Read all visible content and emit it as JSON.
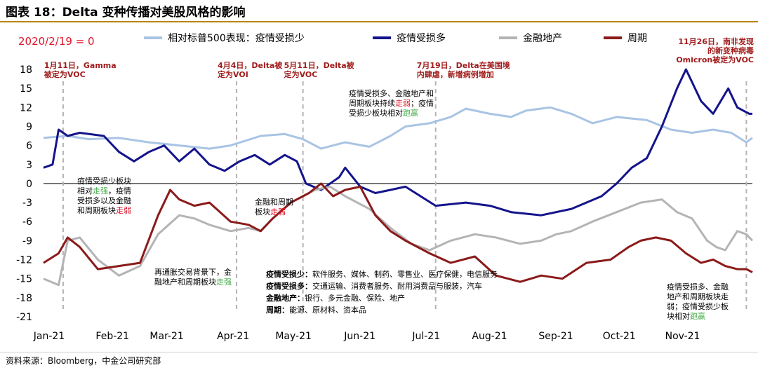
{
  "header": {
    "title": "图表 18：Delta 变种传播对美股风格的影响",
    "base_note": "2020/2/19 = 0",
    "source": "资料来源：Bloomberg，中金公司研究部"
  },
  "colors": {
    "light_blue": "#a9c4e4",
    "dark_blue": "#14148c",
    "gray": "#b4b4b4",
    "dark_red": "#8b1a1a",
    "accent_red": "#e0142a",
    "green": "#4caf50"
  },
  "chart_data": {
    "type": "line",
    "title": "Delta 变种传播对美股风格的影响",
    "xlabel": "",
    "ylabel": "",
    "ylim": [
      -21,
      18
    ],
    "yticks": [
      18,
      15,
      12,
      9,
      6,
      3,
      0,
      -3,
      -6,
      -9,
      -12,
      -15,
      -18,
      -21
    ],
    "xlim": [
      0,
      235
    ],
    "categories": [
      "Jan-21",
      "Feb-21",
      "Mar-21",
      "Apr-21",
      "May-21",
      "Jun-21",
      "Jul-21",
      "Aug-21",
      "Sep-21",
      "Oct-21",
      "Nov-21"
    ],
    "category_x": [
      0,
      21,
      39,
      61,
      81,
      103,
      125,
      146,
      168,
      189,
      210
    ],
    "series": [
      {
        "name": "相对标普500表现：疫情受损少",
        "color": "#a9c4e4",
        "x": [
          0,
          8,
          15,
          25,
          35,
          45,
          55,
          62,
          72,
          80,
          86,
          92,
          100,
          108,
          115,
          120,
          128,
          135,
          140,
          148,
          155,
          160,
          168,
          175,
          182,
          190,
          200,
          208,
          215,
          222,
          228,
          233,
          235
        ],
        "values": [
          7.2,
          7.5,
          7.0,
          7.2,
          6.5,
          6.0,
          5.5,
          6.0,
          7.5,
          7.8,
          7.0,
          5.5,
          6.5,
          5.8,
          7.5,
          9.0,
          9.5,
          10.5,
          11.8,
          11.0,
          10.5,
          11.5,
          12.0,
          11.0,
          9.5,
          10.5,
          10.0,
          8.5,
          8.0,
          8.5,
          8.0,
          6.5,
          7.2
        ]
      },
      {
        "name": "疫情受损多",
        "color": "#14148c",
        "x": [
          0,
          3,
          5,
          8,
          12,
          20,
          25,
          30,
          35,
          40,
          45,
          50,
          55,
          60,
          65,
          70,
          75,
          80,
          84,
          87,
          92,
          98,
          100,
          105,
          110,
          115,
          120,
          125,
          130,
          140,
          148,
          155,
          165,
          175,
          185,
          190,
          195,
          200,
          205,
          210,
          213,
          218,
          222,
          227,
          230,
          234,
          235
        ],
        "values": [
          2.5,
          3.0,
          8.5,
          7.5,
          8.0,
          7.5,
          5.0,
          3.5,
          5.0,
          6.0,
          3.5,
          5.5,
          3.0,
          2.0,
          3.5,
          4.5,
          3.0,
          4.5,
          3.5,
          0.0,
          -1.0,
          1.0,
          2.5,
          -0.5,
          -1.5,
          -1.0,
          -0.5,
          -2.0,
          -3.5,
          -3.0,
          -3.5,
          -4.5,
          -5.0,
          -4.0,
          -2.0,
          0.0,
          2.5,
          4.0,
          9.0,
          15.0,
          18.0,
          13.0,
          11.0,
          15.0,
          12.0,
          11.0,
          11.0
        ]
      },
      {
        "name": "金融地产",
        "color": "#b4b4b4",
        "x": [
          0,
          5,
          8,
          12,
          18,
          25,
          32,
          38,
          45,
          50,
          55,
          62,
          68,
          72,
          76,
          82,
          90,
          95,
          100,
          108,
          115,
          122,
          128,
          135,
          143,
          150,
          158,
          165,
          170,
          175,
          182,
          190,
          198,
          205,
          210,
          215,
          220,
          223,
          226,
          230,
          233,
          235
        ],
        "values": [
          -15.0,
          -16.0,
          -9.0,
          -8.5,
          -12.0,
          -14.5,
          -13.0,
          -8.0,
          -5.0,
          -5.5,
          -6.5,
          -7.5,
          -7.0,
          -7.5,
          -5.5,
          -3.0,
          -1.0,
          -0.5,
          -2.0,
          -4.0,
          -7.0,
          -9.5,
          -10.5,
          -9.0,
          -8.0,
          -8.5,
          -9.5,
          -9.0,
          -8.0,
          -7.5,
          -6.0,
          -4.5,
          -3.0,
          -2.5,
          -4.5,
          -5.5,
          -9.0,
          -10.0,
          -10.5,
          -7.5,
          -8.0,
          -9.0
        ]
      },
      {
        "name": "周期",
        "color": "#8b1a1a",
        "x": [
          0,
          5,
          8,
          12,
          18,
          25,
          32,
          38,
          42,
          45,
          50,
          55,
          62,
          68,
          72,
          76,
          82,
          88,
          92,
          96,
          100,
          105,
          110,
          115,
          120,
          128,
          135,
          143,
          150,
          158,
          165,
          172,
          180,
          188,
          194,
          198,
          203,
          208,
          213,
          218,
          222,
          226,
          230,
          233,
          235
        ],
        "values": [
          -12.5,
          -11.0,
          -8.5,
          -10.0,
          -13.5,
          -13.0,
          -12.5,
          -5.0,
          -1.0,
          -2.5,
          -3.5,
          -3.0,
          -6.0,
          -6.5,
          -7.5,
          -5.5,
          -3.0,
          -1.5,
          0.0,
          -2.0,
          -1.0,
          -0.5,
          -5.0,
          -7.5,
          -9.0,
          -11.0,
          -12.5,
          -11.5,
          -14.5,
          -15.5,
          -14.5,
          -15.0,
          -12.5,
          -12.0,
          -10.0,
          -9.0,
          -8.5,
          -9.0,
          -11.0,
          -12.5,
          -12.0,
          -13.0,
          -13.5,
          -13.5,
          -14.0
        ]
      }
    ],
    "events": [
      {
        "x": 6.5,
        "label_lines": [
          "1月11日，Gamma",
          "被定为VOC"
        ]
      },
      {
        "x": 64,
        "label_lines": [
          "4月4日，Delta被",
          "定为VOI"
        ]
      },
      {
        "x": 86,
        "label_lines": [
          "5月11日，Delta被",
          "定为VOC"
        ]
      },
      {
        "x": 130,
        "label_lines": [
          "7月19日，Delta在美国境",
          "内肆虐，新增病例增加"
        ]
      },
      {
        "x": 233,
        "label_lines": [
          "11月26日，南非发现",
          "的新变种病毒",
          "Omicron被定为VOC"
        ]
      }
    ],
    "annotations": [
      {
        "lines": [
          "疫情受损少板块",
          "相对走强，疫情",
          "受损多以及金融",
          "和周期板块走弱"
        ]
      },
      {
        "lines": [
          "再通胀交易背景下，金",
          "融地产和周期板块走强"
        ]
      },
      {
        "lines": [
          "金融和周期",
          "板块走弱"
        ]
      },
      {
        "lines": [
          "疫情受损多、金融地产和",
          "周期板块持续走弱；疫情",
          "受损少板块相对跑赢"
        ]
      },
      {
        "lines": [
          "疫情受损多、金融",
          "地产和周期板块走",
          "弱；疫情受损少板",
          "块相对跑赢"
        ]
      }
    ],
    "category_box": [
      {
        "label": "疫情受损少：",
        "text": "软件服务、媒体、制药、零售业、医疗保健，电信服务"
      },
      {
        "label": "疫情受损多：",
        "text": "交通运输、消费者服务、耐用消费品与服装，汽车"
      },
      {
        "label": "金融地产：",
        "text": "银行、多元金融、保险、地产"
      },
      {
        "label": "周期：",
        "text": "能源、原材料、资本品"
      }
    ]
  }
}
